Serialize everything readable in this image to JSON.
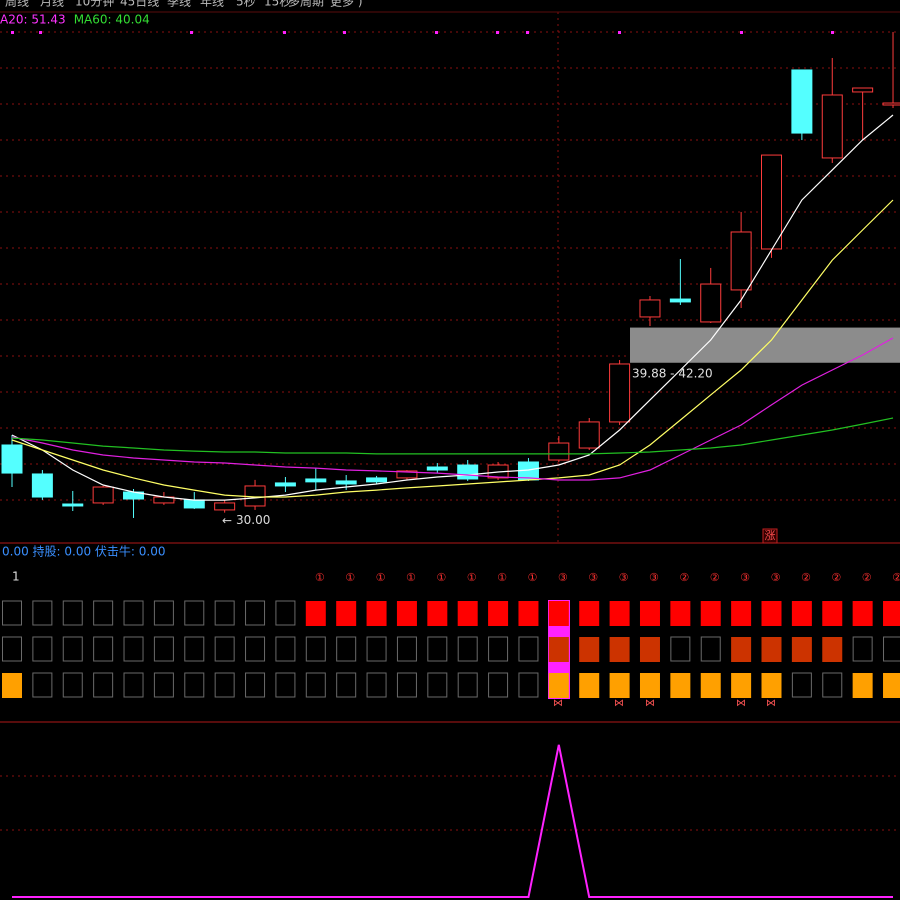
{
  "menu": [
    "周线",
    "月线",
    "10分钟",
    "45日线",
    "季线",
    "年线",
    "5秒",
    "15秒",
    "多周期",
    "更多 )"
  ],
  "legend": [
    {
      "text": "A20: 51.43",
      "color": "#ff33ff"
    },
    {
      "text": "MA60: 40.04",
      "color": "#33dd33"
    }
  ],
  "chart_data": [
    {
      "type": "candlestick",
      "categories": [
        null,
        null,
        null,
        null,
        null,
        null,
        null,
        null,
        null,
        null,
        null,
        null,
        null,
        null,
        null,
        null,
        null,
        null,
        null,
        null,
        null,
        null,
        null,
        null,
        null,
        null,
        null,
        null,
        null,
        null
      ],
      "open": [
        34.46,
        32.55,
        30.57,
        30.64,
        31.36,
        30.64,
        30.84,
        30.18,
        30.44,
        31.96,
        32.22,
        32.09,
        32.29,
        32.29,
        33.01,
        33.14,
        32.29,
        33.34,
        33.47,
        34.26,
        35.98,
        42.9,
        44.08,
        42.57,
        44.68,
        47.38,
        59.18,
        53.38,
        57.73,
        56.87
      ],
      "high": [
        35.12,
        32.81,
        31.43,
        31.76,
        31.56,
        31.36,
        31.36,
        30.84,
        32.16,
        32.35,
        32.94,
        32.48,
        32.42,
        32.81,
        33.27,
        33.47,
        33.34,
        33.6,
        35.05,
        36.24,
        40.06,
        44.28,
        46.72,
        46.13,
        49.82,
        53.57,
        59.18,
        59.97,
        57.99,
        61.68
      ],
      "low": [
        31.69,
        30.84,
        30.11,
        30.51,
        29.65,
        30.51,
        30.24,
        30.0,
        30.18,
        31.36,
        31.5,
        31.5,
        31.89,
        32.16,
        32.61,
        32.09,
        32.16,
        32.09,
        33.34,
        34.13,
        35.78,
        42.3,
        43.69,
        42.5,
        43.49,
        46.79,
        54.56,
        53.05,
        54.56,
        56.67
      ],
      "close": [
        32.61,
        31.03,
        30.44,
        31.69,
        30.9,
        31.03,
        30.31,
        30.64,
        31.76,
        31.76,
        32.03,
        31.89,
        32.03,
        32.75,
        32.81,
        32.22,
        33.14,
        32.16,
        34.59,
        35.98,
        39.8,
        44.02,
        43.89,
        45.07,
        48.5,
        53.57,
        55.02,
        57.53,
        57.99,
        57.0
      ],
      "up_color": "#ff3c3c",
      "down_color": "#54ffff",
      "series": [
        {
          "color": "#ffffff",
          "values": [
            35.12,
            34.13,
            32.81,
            31.82,
            31.36,
            31.03,
            30.83,
            30.83,
            30.97,
            31.16,
            31.49,
            31.69,
            31.89,
            32.15,
            32.35,
            32.48,
            32.68,
            32.81,
            33.14,
            33.8,
            35.45,
            37.43,
            39.4,
            41.38,
            44.02,
            47.31,
            50.61,
            52.59,
            54.56,
            56.21
          ]
        },
        {
          "color": "#ffff66",
          "values": [
            34.79,
            34.13,
            33.47,
            32.81,
            32.29,
            31.82,
            31.49,
            31.16,
            31.03,
            31.03,
            31.16,
            31.36,
            31.49,
            31.63,
            31.76,
            31.89,
            32.02,
            32.15,
            32.29,
            32.48,
            33.14,
            34.46,
            36.11,
            37.76,
            39.4,
            41.38,
            44.02,
            46.65,
            48.63,
            50.61
          ]
        },
        {
          "color": "#e020e0",
          "values": [
            34.99,
            34.59,
            34.13,
            33.8,
            33.6,
            33.47,
            33.34,
            33.27,
            33.14,
            33.01,
            32.94,
            32.81,
            32.75,
            32.68,
            32.61,
            32.48,
            32.35,
            32.29,
            32.15,
            32.15,
            32.29,
            32.81,
            33.8,
            34.79,
            35.78,
            37.1,
            38.41,
            39.4,
            40.39,
            41.51
          ]
        },
        {
          "color": "#22c022",
          "values": [
            34.92,
            34.79,
            34.59,
            34.39,
            34.26,
            34.13,
            34.06,
            34.0,
            34.0,
            33.93,
            33.93,
            33.93,
            33.87,
            33.87,
            33.87,
            33.87,
            33.87,
            33.87,
            33.87,
            33.87,
            33.93,
            34.0,
            34.13,
            34.26,
            34.46,
            34.79,
            35.12,
            35.45,
            35.84,
            36.24
          ]
        }
      ],
      "ylim": [
        28,
        63
      ],
      "zone": {
        "low": 39.88,
        "high": 42.2,
        "label": "39.88 - 42.20"
      },
      "low_marker": {
        "value": 30,
        "label": "30.00"
      },
      "up_signal": "涨"
    },
    {
      "type": "line",
      "values": [
        0,
        0,
        0,
        0,
        0,
        0,
        0,
        0,
        0,
        0,
        0,
        0,
        0,
        0,
        0,
        0,
        0,
        0,
        1,
        0,
        0,
        0,
        0,
        0,
        0,
        0,
        0,
        0,
        0,
        0
      ],
      "color": "#ff22ff",
      "ylim": [
        0,
        1.15
      ]
    }
  ],
  "status_text": "0.00 持股: 0.00 伏击牛: 0.00",
  "panel_label": "1",
  "stages": [
    null,
    null,
    null,
    null,
    null,
    null,
    null,
    null,
    null,
    null,
    "①",
    "①",
    "①",
    "①",
    "①",
    "①",
    "①",
    "①",
    "③",
    "③",
    "③",
    "③",
    "②",
    "②",
    "③",
    "③",
    "②",
    "②",
    "②",
    "②"
  ],
  "signal_rows": [
    [
      null,
      null,
      null,
      null,
      null,
      null,
      null,
      null,
      null,
      null,
      "#ff0000",
      "#ff0000",
      "#ff0000",
      "#ff0000",
      "#ff0000",
      "#ff0000",
      "#ff0000",
      "#ff0000",
      "#ff0000",
      "#ff0000",
      "#ff0000",
      "#ff0000",
      "#ff0000",
      "#ff0000",
      "#ff0000",
      "#ff0000",
      "#ff0000",
      "#ff0000",
      "#ff0000",
      "#ff0000"
    ],
    [
      null,
      null,
      null,
      null,
      null,
      null,
      null,
      null,
      null,
      null,
      null,
      null,
      null,
      null,
      null,
      null,
      null,
      null,
      "#cc3300",
      "#cc3300",
      "#cc3300",
      "#cc3300",
      null,
      null,
      "#cc3300",
      "#cc3300",
      "#cc3300",
      "#cc3300",
      null,
      null
    ],
    [
      "#ffa000",
      null,
      null,
      null,
      null,
      null,
      null,
      null,
      null,
      null,
      null,
      null,
      null,
      null,
      null,
      null,
      null,
      null,
      "#ffa000",
      "#ffa000",
      "#ffa000",
      "#ffa000",
      "#ffa000",
      "#ffa000",
      "#ffa000",
      "#ffa000",
      null,
      null,
      "#ffa000",
      "#ffa000"
    ]
  ]
}
